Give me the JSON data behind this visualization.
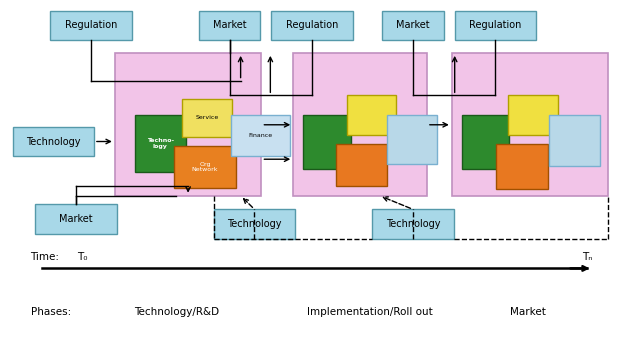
{
  "bg_color": "#ffffff",
  "pink_color": "#f2c4e8",
  "box_color": "#a8d8e8",
  "box_border": "#5599aa",
  "green_dark": "#2d8a2d",
  "yellow": "#f0e040",
  "orange": "#e87820",
  "light_blue_box": "#b8d8e8",
  "finance_color": "#c8e0f0",
  "service_color": "#f0e060",
  "org_network_color": "#e88020",
  "tech_design_color": "#2d8a2d",
  "time_label": "Time:",
  "t0_label": "T₀",
  "tn_label": "Tₙ",
  "phases_label": "Phases:",
  "phase1": "Technology/R&D",
  "phase2": "Implementation/Roll out",
  "phase3": "Market"
}
